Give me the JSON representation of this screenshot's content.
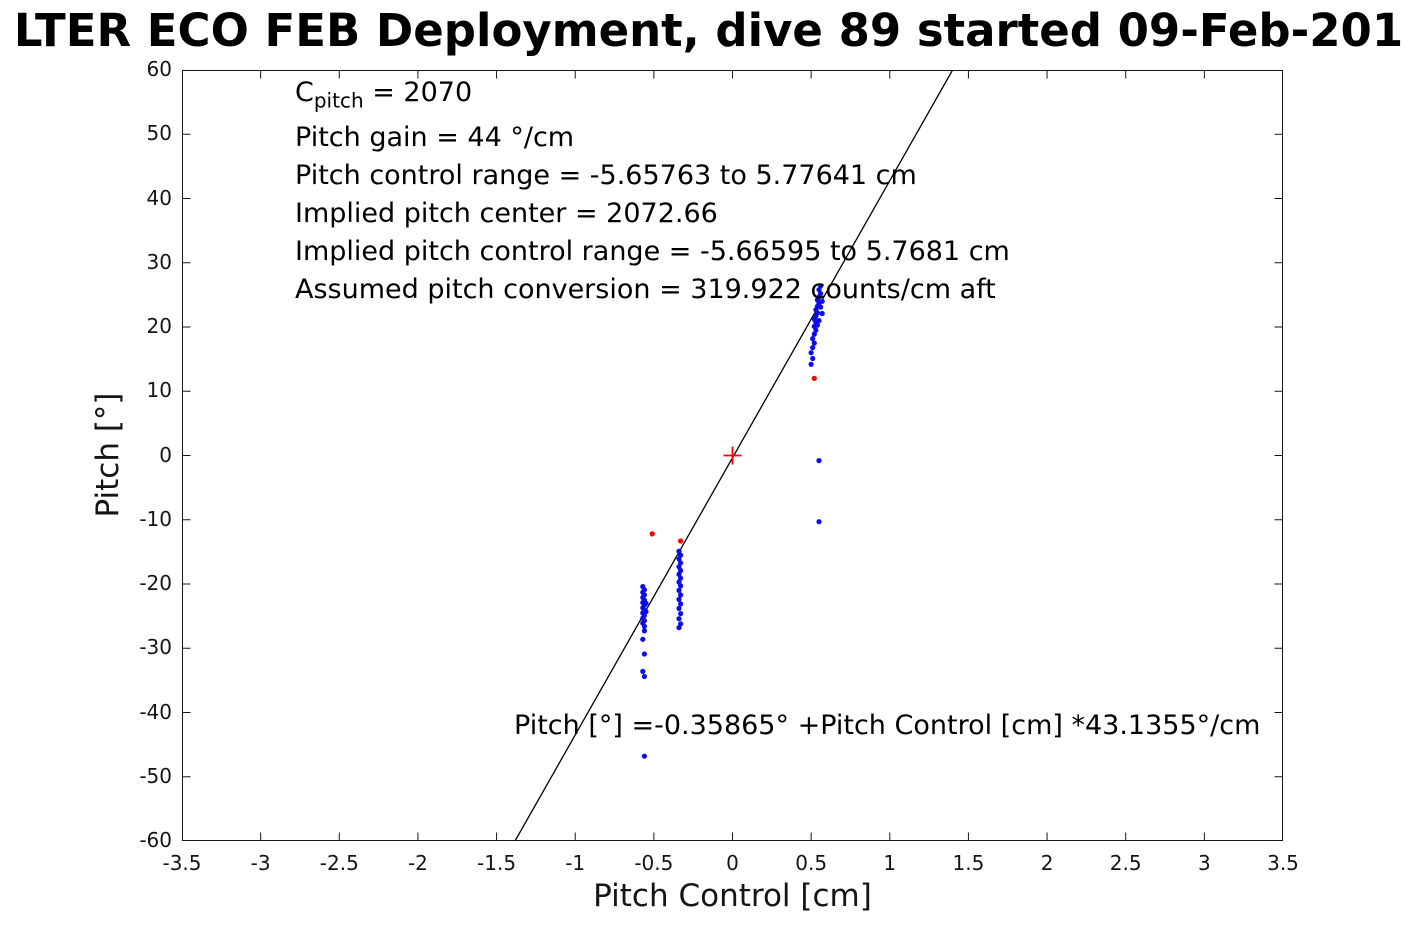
{
  "title": "LTER ECO FEB Deployment, dive 89 started 09-Feb-201",
  "axes": {
    "xlabel": "Pitch Control [cm]",
    "ylabel": "Pitch [°]"
  },
  "annotations": {
    "c_base": "C",
    "c_sub": "pitch",
    "c_rest": " = 2070",
    "lines": [
      "Pitch gain = 44 °/cm",
      "Pitch control range = -5.65763 to 5.77641 cm",
      "Implied pitch center = 2072.66",
      "Implied pitch control range = -5.66595 to 5.7681 cm",
      "Assumed pitch conversion = 319.922 counts/cm aft"
    ],
    "equation": "Pitch [°] =-0.35865° +Pitch Control [cm] *43.1355°/cm"
  },
  "chart_data": {
    "type": "scatter",
    "title": "LTER ECO FEB Deployment, dive 89 started 09-Feb-201",
    "xlabel": "Pitch Control [cm]",
    "ylabel": "Pitch [°]",
    "xlim": [
      -3.5,
      3.5
    ],
    "ylim": [
      -60,
      60
    ],
    "grid": false,
    "legend": null,
    "x_ticks": [
      {
        "v": -3.5,
        "label": "-3.5"
      },
      {
        "v": -3,
        "label": "-3"
      },
      {
        "v": -2.5,
        "label": "-2.5"
      },
      {
        "v": -2,
        "label": "-2"
      },
      {
        "v": -1.5,
        "label": "-1.5"
      },
      {
        "v": -1,
        "label": "-1"
      },
      {
        "v": -0.5,
        "label": "-0.5"
      },
      {
        "v": 0,
        "label": "0"
      },
      {
        "v": 0.5,
        "label": "0.5"
      },
      {
        "v": 1,
        "label": "1"
      },
      {
        "v": 1.5,
        "label": "1.5"
      },
      {
        "v": 2,
        "label": "2"
      },
      {
        "v": 2.5,
        "label": "2.5"
      },
      {
        "v": 3,
        "label": "3"
      },
      {
        "v": 3.5,
        "label": "3.5"
      }
    ],
    "y_ticks": [
      {
        "v": -60,
        "label": "-60"
      },
      {
        "v": -50,
        "label": "-50"
      },
      {
        "v": -40,
        "label": "-40"
      },
      {
        "v": -30,
        "label": "-30"
      },
      {
        "v": -20,
        "label": "-20"
      },
      {
        "v": -10,
        "label": "-10"
      },
      {
        "v": 0,
        "label": "0"
      },
      {
        "v": 10,
        "label": "10"
      },
      {
        "v": 20,
        "label": "20"
      },
      {
        "v": 30,
        "label": "30"
      },
      {
        "v": 40,
        "label": "40"
      },
      {
        "v": 50,
        "label": "50"
      },
      {
        "v": 60,
        "label": "60"
      }
    ],
    "fit_line": {
      "slope": 43.1355,
      "intercept": -0.35865,
      "color": "#000000"
    },
    "plus_marker": {
      "x": 0,
      "y": 0,
      "color": "#ff0000",
      "arm": 9
    },
    "series": [
      {
        "name": "pitch-blue",
        "color": "#0b0bec",
        "marker_radius": 2.6,
        "points": [
          [
            -0.57,
            -20.4
          ],
          [
            -0.56,
            -20.9
          ],
          [
            -0.57,
            -21.3
          ],
          [
            -0.56,
            -21.7
          ],
          [
            -0.57,
            -22.1
          ],
          [
            -0.56,
            -22.5
          ],
          [
            -0.57,
            -22.9
          ],
          [
            -0.56,
            -23.3
          ],
          [
            -0.55,
            -23.0
          ],
          [
            -0.57,
            -23.7
          ],
          [
            -0.56,
            -24.1
          ],
          [
            -0.57,
            -24.5
          ],
          [
            -0.56,
            -24.9
          ],
          [
            -0.55,
            -24.3
          ],
          [
            -0.57,
            -25.3
          ],
          [
            -0.56,
            -25.7
          ],
          [
            -0.57,
            -26.1
          ],
          [
            -0.56,
            -26.6
          ],
          [
            -0.56,
            -27.3
          ],
          [
            -0.57,
            -28.6
          ],
          [
            -0.56,
            -30.9
          ],
          [
            -0.57,
            -33.6
          ],
          [
            -0.56,
            -34.4
          ],
          [
            -0.56,
            -46.8
          ],
          [
            -0.34,
            -14.9
          ],
          [
            -0.33,
            -15.5
          ],
          [
            -0.34,
            -16.1
          ],
          [
            -0.33,
            -16.7
          ],
          [
            -0.34,
            -17.3
          ],
          [
            -0.33,
            -17.9
          ],
          [
            -0.34,
            -18.5
          ],
          [
            -0.33,
            -19.1
          ],
          [
            -0.34,
            -19.7
          ],
          [
            -0.33,
            -20.3
          ],
          [
            -0.34,
            -21.0
          ],
          [
            -0.33,
            -21.7
          ],
          [
            -0.34,
            -22.4
          ],
          [
            -0.33,
            -23.1
          ],
          [
            -0.34,
            -23.8
          ],
          [
            -0.33,
            -24.6
          ],
          [
            -0.34,
            -25.4
          ],
          [
            -0.33,
            -26.2
          ],
          [
            -0.34,
            -26.8
          ],
          [
            0.5,
            14.2
          ],
          [
            0.51,
            15.1
          ],
          [
            0.5,
            16.0
          ],
          [
            0.51,
            16.8
          ],
          [
            0.52,
            17.5
          ],
          [
            0.51,
            18.2
          ],
          [
            0.52,
            18.9
          ],
          [
            0.53,
            19.5
          ],
          [
            0.52,
            20.1
          ],
          [
            0.53,
            20.7
          ],
          [
            0.52,
            21.2
          ],
          [
            0.53,
            21.7
          ],
          [
            0.54,
            22.2
          ],
          [
            0.53,
            22.7
          ],
          [
            0.54,
            23.2
          ],
          [
            0.55,
            23.7
          ],
          [
            0.54,
            24.2
          ],
          [
            0.55,
            24.7
          ],
          [
            0.56,
            25.2
          ],
          [
            0.55,
            25.8
          ],
          [
            0.56,
            26.4
          ],
          [
            0.57,
            24.0
          ],
          [
            0.56,
            23.1
          ],
          [
            0.57,
            22.1
          ],
          [
            0.55,
            21.0
          ],
          [
            0.54,
            20.3
          ],
          [
            0.55,
            -0.8
          ],
          [
            0.55,
            -10.3
          ]
        ]
      },
      {
        "name": "pitch-red",
        "color": "#ff0000",
        "marker_radius": 2.6,
        "points": [
          [
            -0.51,
            -12.2
          ],
          [
            -0.33,
            -13.3
          ],
          [
            0.52,
            12.0
          ]
        ]
      }
    ]
  }
}
